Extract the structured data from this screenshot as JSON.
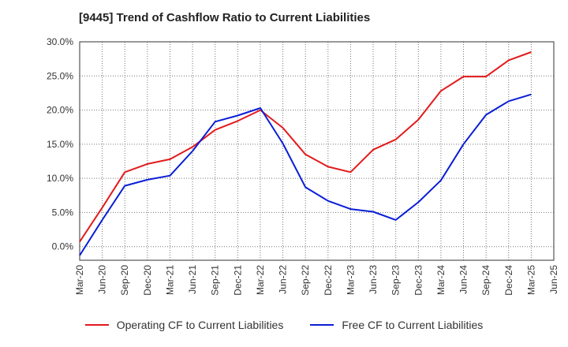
{
  "chart_data": {
    "type": "line",
    "title": "[9445]  Trend of Cashflow Ratio to Current Liabilities",
    "xlabel": "",
    "ylabel": "",
    "ylim": [
      -2,
      30
    ],
    "y_ticks": [
      0,
      5,
      10,
      15,
      20,
      25,
      30
    ],
    "y_tick_labels": [
      "0.0%",
      "5.0%",
      "10.0%",
      "15.0%",
      "20.0%",
      "25.0%",
      "30.0%"
    ],
    "categories": [
      "Mar-20",
      "Jun-20",
      "Sep-20",
      "Dec-20",
      "Mar-21",
      "Jun-21",
      "Sep-21",
      "Dec-21",
      "Mar-22",
      "Jun-22",
      "Sep-22",
      "Dec-22",
      "Mar-23",
      "Jun-23",
      "Sep-23",
      "Dec-23",
      "Mar-24",
      "Jun-24",
      "Sep-24",
      "Dec-24",
      "Mar-25",
      "Jun-25"
    ],
    "grid": true,
    "legend_position": "bottom",
    "series": [
      {
        "name": "Operating CF to Current Liabilities",
        "color": "#e31a1c",
        "values": [
          0.7,
          5.7,
          10.9,
          12.1,
          12.8,
          14.6,
          17.1,
          18.4,
          20.0,
          17.4,
          13.5,
          11.7,
          10.9,
          14.2,
          15.7,
          18.6,
          22.8,
          24.9,
          24.9,
          27.3,
          28.5,
          null
        ]
      },
      {
        "name": "Free CF to Current Liabilities",
        "color": "#0a1ed6",
        "values": [
          -1.3,
          3.9,
          8.9,
          9.8,
          10.4,
          14.0,
          18.3,
          19.2,
          20.3,
          15.1,
          8.7,
          6.7,
          5.5,
          5.1,
          3.9,
          6.5,
          9.7,
          15.0,
          19.3,
          21.3,
          22.3,
          null
        ]
      }
    ]
  }
}
